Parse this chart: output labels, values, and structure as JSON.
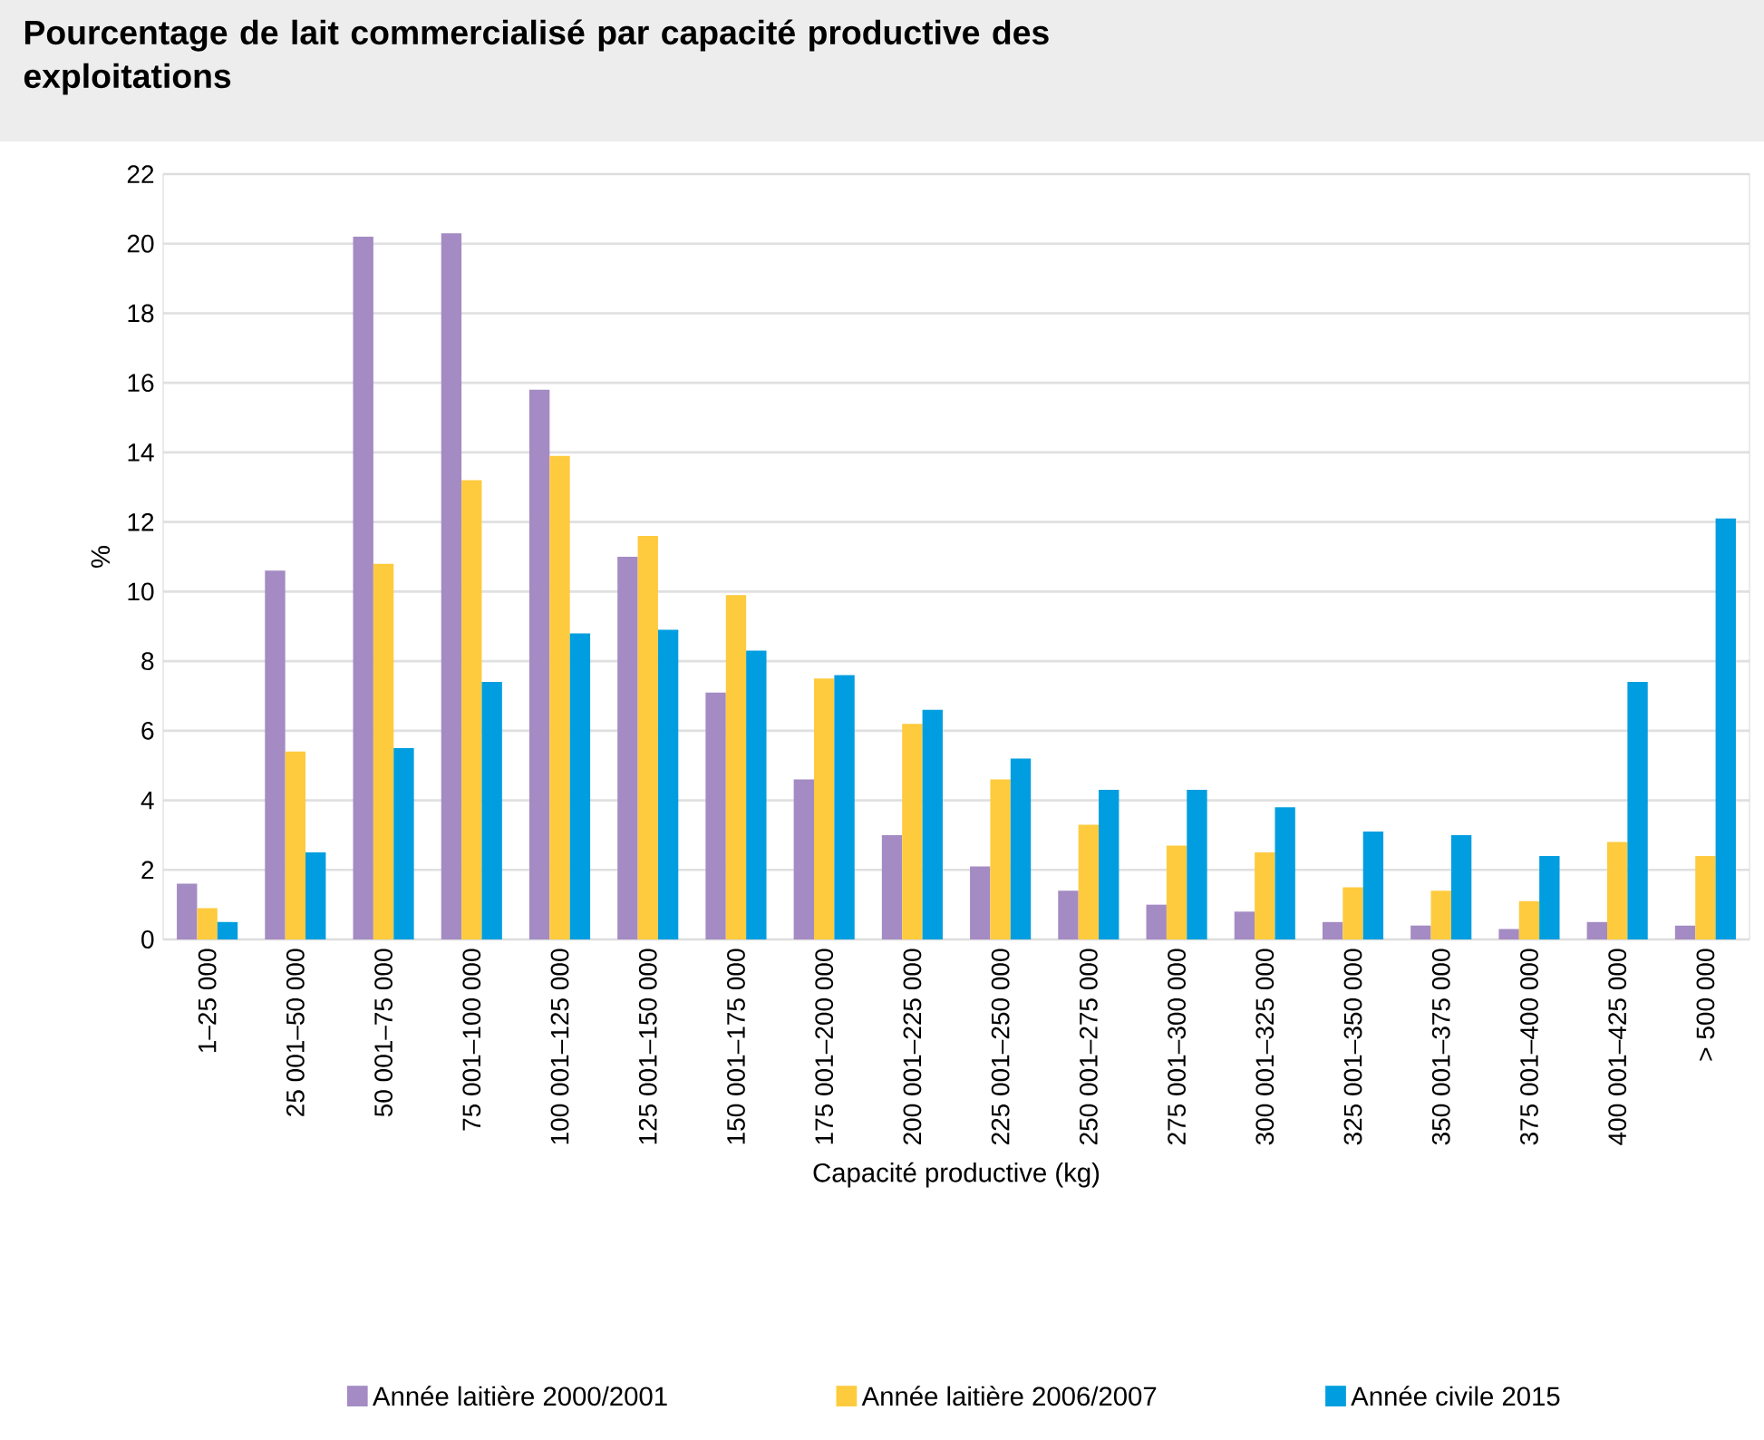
{
  "chart_data": {
    "type": "bar",
    "title": "Pourcentage de lait commercialisé par capacité productive des exploitations",
    "xlabel": "Capacité productive (kg)",
    "ylabel": "%",
    "categories": [
      "1–25 000",
      "25 001–50 000",
      "50 001–75 000",
      "75 001–100 000",
      "100 001–125 000",
      "125 001–150 000",
      "150 001–175 000",
      "175 001–200 000",
      "200 001–225 000",
      "225 001–250 000",
      "250 001–275 000",
      "275 001–300 000",
      "300 001–325 000",
      "325 001–350 000",
      "350 001–375 000",
      "375 001–400 000",
      "400 001–425 000",
      "> 500 000"
    ],
    "series": [
      {
        "name": "Année laitière 2000/2001",
        "color": "#a48bc3",
        "values": [
          1.6,
          10.6,
          20.2,
          20.3,
          15.8,
          11.0,
          7.1,
          4.6,
          3.0,
          2.1,
          1.4,
          1.0,
          0.8,
          0.5,
          0.4,
          0.3,
          0.5,
          0.4
        ]
      },
      {
        "name": "Année laitière 2006/2007",
        "color": "#fecb3e",
        "values": [
          0.9,
          5.4,
          10.8,
          13.2,
          13.9,
          11.6,
          9.9,
          7.5,
          6.2,
          4.6,
          3.3,
          2.7,
          2.5,
          1.5,
          1.4,
          1.1,
          2.8,
          2.4
        ]
      },
      {
        "name": "Année civile 2015",
        "color": "#009ee0",
        "values": [
          0.5,
          2.5,
          5.5,
          7.4,
          8.8,
          8.9,
          8.3,
          7.6,
          6.6,
          5.2,
          4.3,
          4.3,
          3.8,
          3.1,
          3.0,
          2.4,
          7.4,
          12.1
        ]
      }
    ],
    "ylim": [
      0,
      22
    ],
    "yticks": [
      0,
      2,
      4,
      6,
      8,
      10,
      12,
      14,
      16,
      18,
      20,
      22
    ],
    "grid": "y",
    "legend": "bottom"
  }
}
